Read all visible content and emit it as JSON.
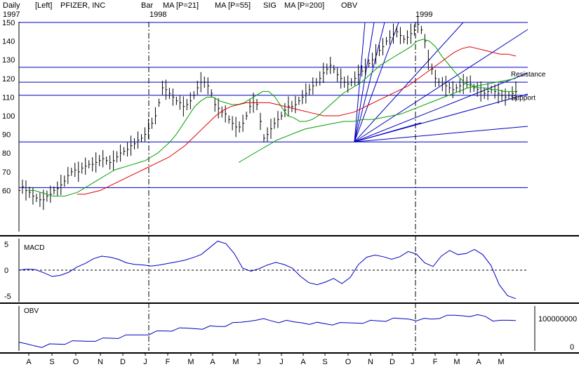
{
  "header": {
    "period": "Daily",
    "scale": "[Left]",
    "ticker": "PFIZER, INC",
    "style": "Bar",
    "indicators": [
      {
        "label": "MA [P=21]",
        "color": "#00a000"
      },
      {
        "label": "MA [P=55]",
        "color": "#e00000"
      },
      {
        "label": "SIG",
        "color": "#0000c0"
      },
      {
        "label": "MA [P=200]",
        "color": "#00a000"
      },
      {
        "label": "OBV",
        "color": "#0000c0"
      }
    ]
  },
  "years": [
    "1997",
    "1998",
    "1999"
  ],
  "months": [
    "A",
    "S",
    "O",
    "N",
    "D",
    "J",
    "F",
    "M",
    "A",
    "M",
    "J",
    "J",
    "A",
    "S",
    "O",
    "N",
    "D",
    "J",
    "F",
    "M",
    "A",
    "M"
  ],
  "colors": {
    "price": "#000000",
    "ma21": "#00a000",
    "ma55": "#e00000",
    "ma200": "#00a000",
    "lines": "#0000c0",
    "macd": "#0000c0",
    "obv": "#0000c0"
  },
  "chart_data": [
    {
      "type": "line",
      "title": "PFIZER, INC",
      "ylim": [
        50,
        150
      ],
      "y_ticks": [
        60,
        70,
        80,
        90,
        100,
        110,
        120,
        130,
        140,
        150
      ],
      "price_series": {
        "x": [
          0,
          5,
          10,
          15,
          20,
          25,
          30,
          35,
          40,
          45,
          50,
          55,
          60,
          65,
          70,
          75,
          80,
          85,
          90,
          95,
          100,
          105,
          110,
          115,
          120,
          125,
          130,
          135,
          140,
          145,
          150,
          155,
          160,
          165,
          170,
          175,
          180,
          185,
          190,
          195,
          200,
          205,
          210,
          215,
          220,
          225,
          230,
          235,
          240,
          245,
          250,
          255,
          260,
          265,
          270,
          275,
          280,
          285,
          290,
          295,
          300,
          305,
          310,
          315,
          320,
          325,
          330,
          335,
          340,
          345,
          350,
          355,
          360,
          365,
          370,
          375,
          380,
          385,
          390,
          395,
          400,
          405,
          410,
          415,
          420,
          425,
          430,
          435,
          440,
          445,
          450,
          455,
          460,
          465,
          470,
          475,
          480,
          485,
          490,
          495,
          500,
          505,
          510,
          515,
          520,
          525,
          530,
          535,
          540,
          545,
          550,
          555,
          560,
          565,
          570,
          575,
          580,
          585,
          590,
          595,
          600,
          605,
          610,
          615,
          620,
          625,
          630,
          635,
          640,
          645,
          650,
          655,
          660,
          665,
          670,
          675,
          680,
          685,
          690,
          695,
          700,
          705,
          710
        ],
        "close": [
          60,
          62,
          60,
          59,
          57,
          56,
          55,
          55,
          57,
          58,
          60,
          61,
          63,
          65,
          68,
          70,
          71,
          70,
          72,
          73,
          74,
          74,
          75,
          76,
          77,
          76,
          75,
          76,
          78,
          80,
          81,
          82,
          84,
          85,
          87,
          88,
          90,
          93,
          96,
          100,
          107,
          115,
          114,
          112,
          110,
          108,
          107,
          105,
          106,
          108,
          111,
          115,
          118,
          118,
          116,
          112,
          106,
          104,
          102,
          101,
          98,
          96,
          94,
          94,
          96,
          100,
          105,
          107,
          106,
          97,
          88,
          90,
          93,
          96,
          98,
          100,
          103,
          105,
          105,
          106,
          108,
          110,
          112,
          114,
          116,
          118,
          120,
          123,
          125,
          127,
          125,
          122,
          120,
          118,
          117,
          118,
          120,
          122,
          124,
          126,
          128,
          130,
          133,
          135,
          137,
          140,
          142,
          144,
          145,
          143,
          141,
          142,
          144,
          146,
          149,
          146,
          140,
          130,
          125,
          120,
          118,
          117,
          116,
          115,
          114,
          115,
          116,
          117,
          118,
          117,
          115,
          114,
          113,
          112,
          113,
          114,
          113,
          112,
          111,
          110,
          111,
          112,
          113
        ]
      },
      "ma21": [
        60,
        60,
        59,
        58,
        57,
        57,
        57,
        58,
        59,
        61,
        63,
        65,
        67,
        69,
        71,
        72,
        73,
        74,
        75,
        76,
        78,
        80,
        83,
        86,
        90,
        95,
        100,
        105,
        108,
        110,
        110,
        108,
        107,
        106,
        106,
        107,
        109,
        111,
        113,
        113,
        110,
        105,
        100,
        99,
        97,
        97,
        98,
        100,
        103,
        106,
        109,
        112,
        114,
        116,
        118,
        121,
        124,
        127,
        129,
        131,
        133,
        135,
        137,
        140,
        141,
        140,
        137,
        132,
        128,
        124,
        120,
        117,
        116,
        115,
        115,
        114,
        114,
        113,
        113,
        113
      ],
      "ma55": [
        58,
        58,
        59,
        60,
        62,
        64,
        66,
        68,
        70,
        72,
        74,
        76,
        78,
        81,
        84,
        88,
        92,
        96,
        100,
        103,
        105,
        106,
        107,
        107,
        107,
        107,
        106,
        105,
        104,
        103,
        102,
        101,
        100,
        100,
        100,
        101,
        102,
        104,
        106,
        108,
        110,
        112,
        114,
        116,
        119,
        122,
        125,
        128,
        131,
        134,
        136,
        137,
        136,
        135,
        134,
        133,
        133,
        132
      ],
      "ma200": [
        75,
        78,
        81,
        84,
        87,
        89,
        91,
        93,
        94,
        95,
        96,
        97,
        97,
        98,
        98,
        99,
        100,
        101,
        103,
        105,
        107,
        109,
        111,
        113,
        115,
        116,
        117,
        118,
        119,
        120
      ],
      "horizontal_lines": [
        150,
        126,
        118,
        111,
        86,
        61.5
      ],
      "annotations": [
        {
          "text": "Resistance",
          "value": 122.5
        },
        {
          "text": "Support",
          "value": 110
        }
      ]
    },
    {
      "type": "line",
      "title": "MACD",
      "ylim": [
        -6,
        6
      ],
      "y_ticks": [
        5,
        0,
        -5
      ],
      "values": [
        0,
        0.2,
        0.1,
        -0.5,
        -1.2,
        -1,
        -0.4,
        0.6,
        1.3,
        2.2,
        2.7,
        2.5,
        2.1,
        1.4,
        1.1,
        1.0,
        0.8,
        1.0,
        1.3,
        1.6,
        1.9,
        2.4,
        3.0,
        4.3,
        5.6,
        5.1,
        3.2,
        0.4,
        -0.2,
        0.3,
        1.0,
        1.5,
        1.1,
        0.4,
        -1.2,
        -2.4,
        -2.8,
        -2.3,
        -1.6,
        -2.6,
        -1.4,
        1.1,
        2.5,
        2.9,
        2.6,
        2.1,
        2.6,
        3.6,
        3.1,
        1.4,
        0.7,
        2.7,
        3.8,
        3.0,
        3.2,
        4.0,
        3.0,
        0.9,
        -2.8,
        -4.9,
        -5.5
      ]
    },
    {
      "type": "line",
      "title": "OBV",
      "ylim": [
        0,
        140000000
      ],
      "y_ticks": [
        100000000,
        0
      ],
      "values": [
        10,
        8,
        5,
        3,
        6,
        9,
        12,
        15,
        18,
        21,
        25,
        27,
        30,
        33,
        36,
        40,
        44,
        48,
        52,
        56,
        59,
        61,
        64,
        66,
        68,
        70,
        72,
        76,
        80,
        85,
        92,
        100,
        96,
        92,
        89,
        88,
        86,
        87,
        85,
        83,
        82,
        81,
        80,
        83,
        86,
        89,
        90,
        92,
        94,
        96,
        98,
        100,
        98,
        97,
        98,
        104,
        106,
        110,
        112,
        113,
        110,
        108,
        95,
        88,
        92,
        95
      ]
    }
  ]
}
